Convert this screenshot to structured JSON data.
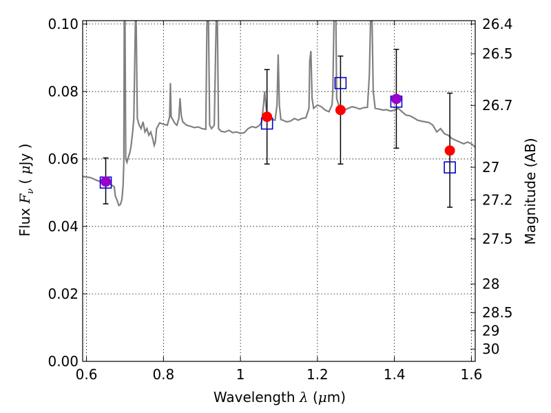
{
  "chart_data": {
    "type": "scatter",
    "xlabel": {
      "prefix": "Wavelength",
      "symbol": "λ",
      "unit_open": "(",
      "unit_mu": "μ",
      "unit_rest": "m)"
    },
    "ylabel": {
      "prefix": "Flux",
      "symbol": "F",
      "subscript": "ν",
      "unit_open": "(",
      "unit_mu": "μ",
      "unit_rest": "Jy )"
    },
    "y2label": "Magnitude (AB)",
    "xlim": [
      0.59,
      1.61
    ],
    "ylim": [
      0.0,
      0.101
    ],
    "grid": true,
    "x_ticks": [
      {
        "value": 0.6,
        "label": "0.6"
      },
      {
        "value": 0.8,
        "label": "0.8"
      },
      {
        "value": 1.0,
        "label": "1"
      },
      {
        "value": 1.2,
        "label": "1.2"
      },
      {
        "value": 1.4,
        "label": "1.4"
      },
      {
        "value": 1.6,
        "label": "1.6"
      }
    ],
    "y_ticks": [
      {
        "value": 0.0,
        "label": "0.00"
      },
      {
        "value": 0.02,
        "label": "0.02"
      },
      {
        "value": 0.04,
        "label": "0.04"
      },
      {
        "value": 0.06,
        "label": "0.06"
      },
      {
        "value": 0.08,
        "label": "0.08"
      },
      {
        "value": 0.1,
        "label": "0.10"
      }
    ],
    "y2_ticks": [
      {
        "mag": 26.4,
        "label": "26.4"
      },
      {
        "mag": 26.5,
        "label": "26.5"
      },
      {
        "mag": 26.7,
        "label": "26.7"
      },
      {
        "mag": 27.0,
        "label": "27"
      },
      {
        "mag": 27.2,
        "label": "27.2"
      },
      {
        "mag": 27.5,
        "label": "27.5"
      },
      {
        "mag": 28.0,
        "label": "28"
      },
      {
        "mag": 28.5,
        "label": "28.5"
      },
      {
        "mag": 29.0,
        "label": "29"
      },
      {
        "mag": 30.0,
        "label": "30"
      }
    ],
    "series": [
      {
        "kind": "spectrum",
        "color": "#808080",
        "points": [
          [
            0.59,
            0.0548
          ],
          [
            0.61,
            0.0545
          ],
          [
            0.63,
            0.0535
          ],
          [
            0.65,
            0.0528
          ],
          [
            0.66,
            0.0526
          ],
          [
            0.672,
            0.0518
          ],
          [
            0.675,
            0.049
          ],
          [
            0.68,
            0.0476
          ],
          [
            0.684,
            0.0462
          ],
          [
            0.688,
            0.0465
          ],
          [
            0.692,
            0.048
          ],
          [
            0.695,
            0.052
          ],
          [
            0.697,
            0.059
          ],
          [
            0.698,
            0.101
          ],
          [
            0.7,
            0.101
          ],
          [
            0.702,
            0.06
          ],
          [
            0.705,
            0.059
          ],
          [
            0.71,
            0.061
          ],
          [
            0.713,
            0.062
          ],
          [
            0.716,
            0.064
          ],
          [
            0.72,
            0.068
          ],
          [
            0.723,
            0.072
          ],
          [
            0.727,
            0.101
          ],
          [
            0.729,
            0.101
          ],
          [
            0.732,
            0.072
          ],
          [
            0.737,
            0.07
          ],
          [
            0.742,
            0.069
          ],
          [
            0.747,
            0.071
          ],
          [
            0.752,
            0.068
          ],
          [
            0.757,
            0.069
          ],
          [
            0.762,
            0.067
          ],
          [
            0.767,
            0.068
          ],
          [
            0.772,
            0.066
          ],
          [
            0.776,
            0.064
          ],
          [
            0.779,
            0.065
          ],
          [
            0.782,
            0.069
          ],
          [
            0.79,
            0.0707
          ],
          [
            0.8,
            0.0703
          ],
          [
            0.81,
            0.07
          ],
          [
            0.816,
            0.0725
          ],
          [
            0.818,
            0.0825
          ],
          [
            0.82,
            0.0725
          ],
          [
            0.83,
            0.0705
          ],
          [
            0.835,
            0.07
          ],
          [
            0.84,
            0.072
          ],
          [
            0.843,
            0.078
          ],
          [
            0.846,
            0.073
          ],
          [
            0.85,
            0.071
          ],
          [
            0.86,
            0.07
          ],
          [
            0.87,
            0.0697
          ],
          [
            0.88,
            0.0693
          ],
          [
            0.89,
            0.0695
          ],
          [
            0.9,
            0.069
          ],
          [
            0.91,
            0.0688
          ],
          [
            0.913,
            0.101
          ],
          [
            0.917,
            0.101
          ],
          [
            0.92,
            0.07
          ],
          [
            0.925,
            0.069
          ],
          [
            0.932,
            0.07
          ],
          [
            0.937,
            0.101
          ],
          [
            0.94,
            0.101
          ],
          [
            0.943,
            0.069
          ],
          [
            0.95,
            0.0682
          ],
          [
            0.96,
            0.068
          ],
          [
            0.97,
            0.0685
          ],
          [
            0.98,
            0.0678
          ],
          [
            0.99,
            0.068
          ],
          [
            1.0,
            0.0676
          ],
          [
            1.01,
            0.0678
          ],
          [
            1.02,
            0.069
          ],
          [
            1.03,
            0.0696
          ],
          [
            1.04,
            0.0693
          ],
          [
            1.05,
            0.07
          ],
          [
            1.055,
            0.071
          ],
          [
            1.06,
            0.076
          ],
          [
            1.063,
            0.08
          ],
          [
            1.066,
            0.076
          ],
          [
            1.07,
            0.072
          ],
          [
            1.08,
            0.0717
          ],
          [
            1.09,
            0.0715
          ],
          [
            1.095,
            0.076
          ],
          [
            1.098,
            0.091
          ],
          [
            1.101,
            0.076
          ],
          [
            1.105,
            0.0717
          ],
          [
            1.11,
            0.0715
          ],
          [
            1.12,
            0.071
          ],
          [
            1.13,
            0.0712
          ],
          [
            1.14,
            0.072
          ],
          [
            1.15,
            0.0715
          ],
          [
            1.16,
            0.072
          ],
          [
            1.17,
            0.0722
          ],
          [
            1.178,
            0.075
          ],
          [
            1.18,
            0.089
          ],
          [
            1.183,
            0.092
          ],
          [
            1.186,
            0.078
          ],
          [
            1.19,
            0.075
          ],
          [
            1.2,
            0.076
          ],
          [
            1.21,
            0.0755
          ],
          [
            1.22,
            0.0745
          ],
          [
            1.23,
            0.074
          ],
          [
            1.238,
            0.076
          ],
          [
            1.24,
            0.08
          ],
          [
            1.243,
            0.101
          ],
          [
            1.248,
            0.101
          ],
          [
            1.25,
            0.078
          ],
          [
            1.255,
            0.076
          ],
          [
            1.26,
            0.075
          ],
          [
            1.27,
            0.0745
          ],
          [
            1.28,
            0.075
          ],
          [
            1.29,
            0.0755
          ],
          [
            1.3,
            0.0752
          ],
          [
            1.31,
            0.0748
          ],
          [
            1.32,
            0.0752
          ],
          [
            1.33,
            0.0753
          ],
          [
            1.335,
            0.085
          ],
          [
            1.338,
            0.101
          ],
          [
            1.342,
            0.101
          ],
          [
            1.345,
            0.08
          ],
          [
            1.35,
            0.075
          ],
          [
            1.36,
            0.0748
          ],
          [
            1.37,
            0.0745
          ],
          [
            1.38,
            0.0746
          ],
          [
            1.39,
            0.0742
          ],
          [
            1.4,
            0.0745
          ],
          [
            1.41,
            0.075
          ],
          [
            1.42,
            0.074
          ],
          [
            1.43,
            0.073
          ],
          [
            1.44,
            0.0728
          ],
          [
            1.45,
            0.0722
          ],
          [
            1.46,
            0.0715
          ],
          [
            1.47,
            0.0712
          ],
          [
            1.48,
            0.071
          ],
          [
            1.49,
            0.0708
          ],
          [
            1.5,
            0.07
          ],
          [
            1.51,
            0.068
          ],
          [
            1.52,
            0.069
          ],
          [
            1.53,
            0.0675
          ],
          [
            1.54,
            0.067
          ],
          [
            1.55,
            0.066
          ],
          [
            1.56,
            0.0655
          ],
          [
            1.57,
            0.065
          ],
          [
            1.58,
            0.0645
          ],
          [
            1.59,
            0.065
          ],
          [
            1.6,
            0.0645
          ],
          [
            1.61,
            0.0635
          ]
        ]
      },
      {
        "kind": "observed",
        "color": "#ff0000",
        "marker": "circle",
        "points": [
          {
            "x": 0.65,
            "y": 0.0533,
            "yerr_low": 0.0467,
            "yerr_high": 0.0603
          },
          {
            "x": 1.069,
            "y": 0.0725,
            "yerr_low": 0.0585,
            "yerr_high": 0.0865
          },
          {
            "x": 1.26,
            "y": 0.0745,
            "yerr_low": 0.0585,
            "yerr_high": 0.0905
          },
          {
            "x": 1.405,
            "y": 0.0778,
            "yerr_low": 0.0632,
            "yerr_high": 0.0925
          },
          {
            "x": 1.544,
            "y": 0.0625,
            "yerr_low": 0.0457,
            "yerr_high": 0.0795
          }
        ]
      },
      {
        "kind": "model",
        "color": "#0000cc",
        "marker": "square-open",
        "points": [
          {
            "x": 0.65,
            "y": 0.053
          },
          {
            "x": 1.069,
            "y": 0.0705
          },
          {
            "x": 1.26,
            "y": 0.0825
          },
          {
            "x": 1.405,
            "y": 0.077
          },
          {
            "x": 1.544,
            "y": 0.0575
          }
        ]
      }
    ],
    "highlight_color": "#9900cc"
  }
}
